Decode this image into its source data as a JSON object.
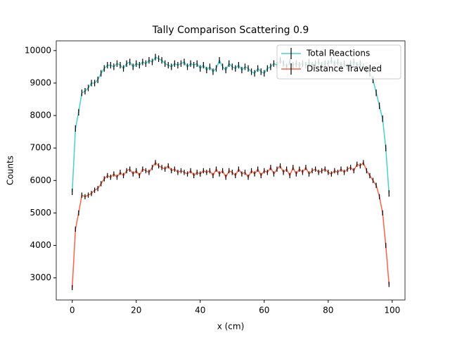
{
  "chart_data": {
    "type": "errorbar-line",
    "title": "Tally Comparison Scattering 0.9",
    "xlabel": "x (cm)",
    "ylabel": "Counts",
    "x": [
      0,
      1,
      2,
      3,
      4,
      5,
      6,
      7,
      8,
      9,
      10,
      11,
      12,
      13,
      14,
      15,
      16,
      17,
      18,
      19,
      20,
      21,
      22,
      23,
      24,
      25,
      26,
      27,
      28,
      29,
      30,
      31,
      32,
      33,
      34,
      35,
      36,
      37,
      38,
      39,
      40,
      41,
      42,
      43,
      44,
      45,
      46,
      47,
      48,
      49,
      50,
      51,
      52,
      53,
      54,
      55,
      56,
      57,
      58,
      59,
      60,
      61,
      62,
      63,
      64,
      65,
      66,
      67,
      68,
      69,
      70,
      71,
      72,
      73,
      74,
      75,
      76,
      77,
      78,
      79,
      80,
      81,
      82,
      83,
      84,
      85,
      86,
      87,
      88,
      89,
      90,
      91,
      92,
      93,
      94,
      95,
      96,
      97,
      98,
      99
    ],
    "series": [
      {
        "name": "Total Reactions",
        "color": "#48d1cc",
        "yerr": 100,
        "values": [
          5650,
          7600,
          8100,
          8700,
          8750,
          8850,
          9000,
          9000,
          9100,
          9300,
          9450,
          9550,
          9550,
          9500,
          9600,
          9550,
          9450,
          9600,
          9650,
          9500,
          9600,
          9550,
          9650,
          9600,
          9700,
          9650,
          9800,
          9750,
          9700,
          9600,
          9550,
          9500,
          9600,
          9550,
          9600,
          9650,
          9500,
          9600,
          9550,
          9600,
          9450,
          9550,
          9400,
          9500,
          9350,
          9450,
          9700,
          9500,
          9400,
          9600,
          9500,
          9450,
          9550,
          9400,
          9500,
          9450,
          9350,
          9300,
          9450,
          9350,
          9300,
          9450,
          9500,
          9600,
          9550,
          9700,
          9600,
          9500,
          9650,
          9550,
          9600,
          9550,
          9600,
          9550,
          9650,
          9550,
          9600,
          9650,
          9550,
          9600,
          9600,
          9700,
          9600,
          9650,
          9550,
          9600,
          9500,
          9600,
          9650,
          9550,
          9600,
          9500,
          9400,
          9300,
          9100,
          8700,
          8300,
          7900,
          7000,
          5600
        ]
      },
      {
        "name": "Distance Traveled",
        "color": "#ff6347",
        "yerr": 80,
        "values": [
          2700,
          4500,
          5000,
          5550,
          5500,
          5550,
          5600,
          5700,
          5750,
          5900,
          6050,
          6150,
          6100,
          6200,
          6100,
          6250,
          6150,
          6300,
          6350,
          6200,
          6300,
          6150,
          6350,
          6300,
          6250,
          6400,
          6550,
          6450,
          6400,
          6350,
          6450,
          6300,
          6350,
          6250,
          6300,
          6250,
          6200,
          6300,
          6150,
          6250,
          6200,
          6300,
          6250,
          6300,
          6150,
          6350,
          6200,
          6300,
          6100,
          6300,
          6250,
          6150,
          6350,
          6200,
          6250,
          6100,
          6300,
          6200,
          6350,
          6150,
          6300,
          6250,
          6400,
          6200,
          6350,
          6450,
          6250,
          6350,
          6150,
          6400,
          6200,
          6350,
          6250,
          6400,
          6200,
          6300,
          6350,
          6250,
          6300,
          6350,
          6250,
          6200,
          6300,
          6250,
          6350,
          6250,
          6350,
          6400,
          6300,
          6500,
          6450,
          6550,
          6300,
          6150,
          6000,
          5850,
          5500,
          5000,
          4000,
          2800
        ]
      }
    ],
    "xlim": [
      -5,
      104
    ],
    "ylim": [
      2320,
      10300
    ],
    "xticks": [
      0,
      20,
      40,
      60,
      80,
      100
    ],
    "yticks": [
      3000,
      4000,
      5000,
      6000,
      7000,
      8000,
      9000,
      10000
    ],
    "legend": "upper right"
  }
}
